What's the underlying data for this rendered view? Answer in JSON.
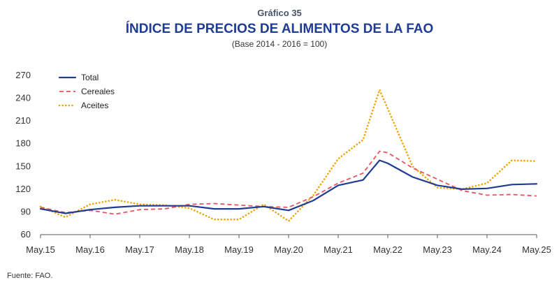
{
  "header": {
    "kicker": "Gráfico 35",
    "title": "ÍNDICE DE PRECIOS  DE ALIMENTOS DE LA FAO",
    "subtitle": "(Base 2014 - 2016 = 100)"
  },
  "footer": {
    "source": "Fuente: FAO."
  },
  "chart_data": {
    "type": "line",
    "title": "ÍNDICE DE PRECIOS  DE ALIMENTOS DE LA FAO",
    "subtitle": "(Base 2014 - 2016 = 100)",
    "xlabel": "",
    "ylabel": "",
    "ylim": [
      60,
      270
    ],
    "yticks": [
      60,
      90,
      120,
      150,
      180,
      210,
      240,
      270
    ],
    "x_tick_labels": [
      "May.15",
      "May.16",
      "May.17",
      "May.18",
      "May.19",
      "May.20",
      "May.21",
      "May.22",
      "May.23",
      "May.24",
      "May.25"
    ],
    "x": [
      "May.15",
      "Nov.15",
      "May.16",
      "Nov.16",
      "May.17",
      "Nov.17",
      "May.18",
      "Nov.18",
      "May.19",
      "Nov.19",
      "May.20",
      "Nov.20",
      "May.21",
      "Nov.21",
      "Mar.22",
      "May.22",
      "Nov.22",
      "May.23",
      "Nov.23",
      "May.24",
      "Nov.24",
      "May.25"
    ],
    "grid": false,
    "legend_position": "top-left",
    "colors": {
      "total": "#1f3c94",
      "cereales": "#e8545c",
      "aceites": "#f0a500",
      "axis": "#555555"
    },
    "series": [
      {
        "name": "Total",
        "style": "solid",
        "values": [
          94,
          88,
          93,
          96,
          98,
          98,
          98,
          94,
          94,
          97,
          92,
          105,
          125,
          132,
          158,
          154,
          136,
          125,
          120,
          121,
          126,
          127
        ]
      },
      {
        "name": "Cereales",
        "style": "dashed",
        "values": [
          96,
          89,
          92,
          87,
          93,
          94,
          100,
          101,
          99,
          97,
          96,
          110,
          128,
          141,
          170,
          168,
          148,
          133,
          118,
          112,
          113,
          111
        ]
      },
      {
        "name": "Aceites",
        "style": "dotted",
        "values": [
          97,
          83,
          100,
          106,
          100,
          99,
          95,
          80,
          80,
          100,
          78,
          112,
          160,
          185,
          251,
          226,
          150,
          122,
          120,
          128,
          158,
          157
        ]
      }
    ]
  }
}
